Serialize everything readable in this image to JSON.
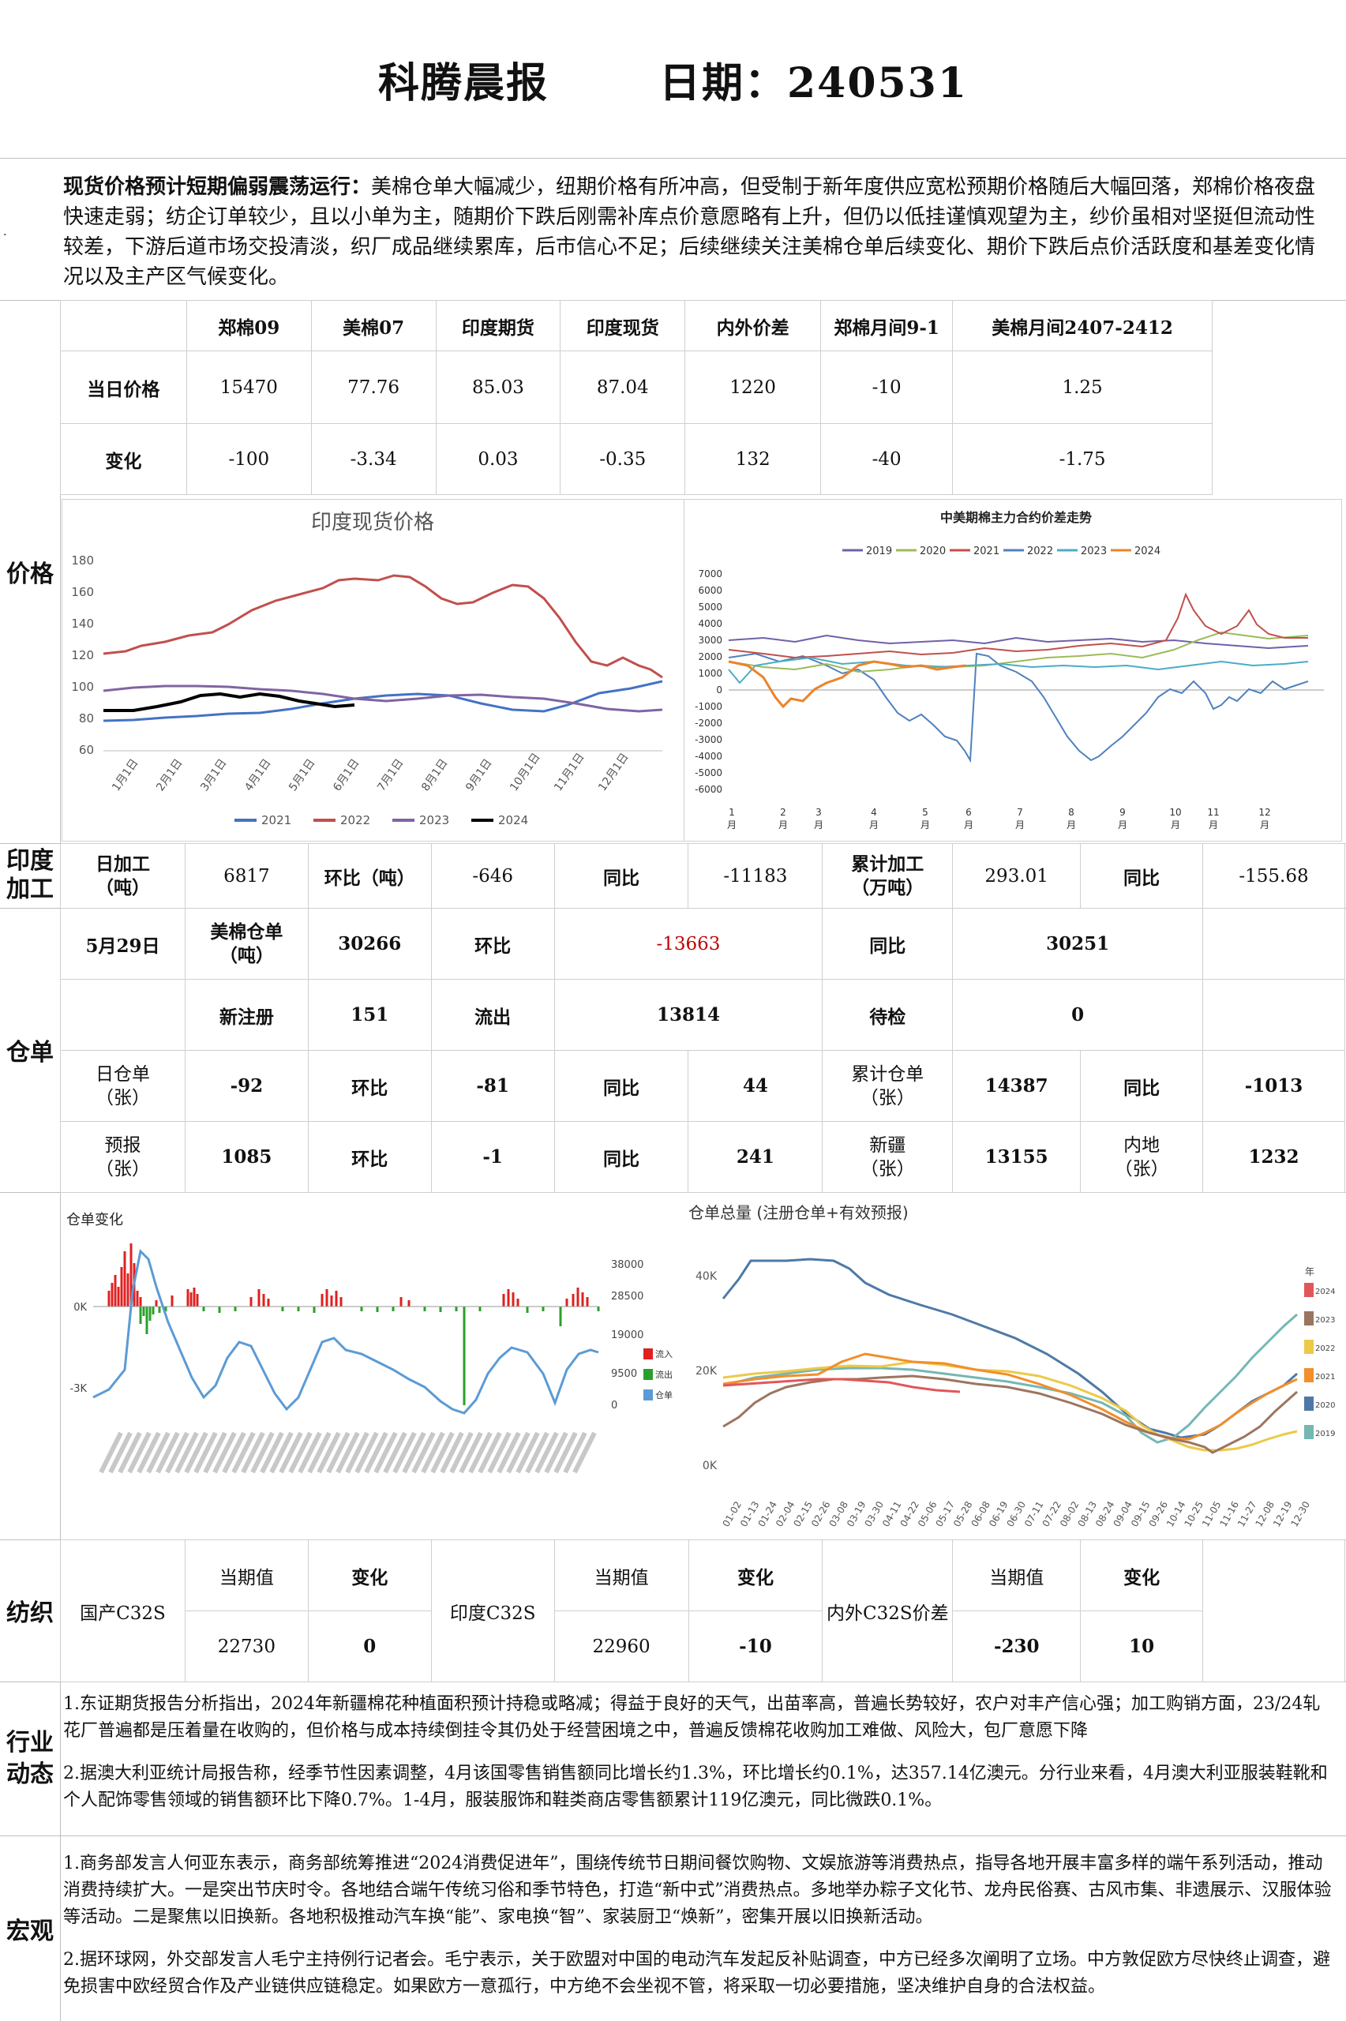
{
  "header": {
    "title": "科腾晨报",
    "date_label": "日期：240531"
  },
  "summary": {
    "lead": "现货价格预计短期偏弱震荡运行：",
    "body": "美棉仓单大幅减少，纽期价格有所冲高，但受制于新年度供应宽松预期价格随后大幅回落，郑棉价格夜盘快速走弱；纺企订单较少，且以小单为主，随期价下跌后刚需补库点价意愿略有上升，但仍以低挂谨慎观望为主，纱价虽相对坚挺但流动性较差，下游后道市场交投清淡，织厂成品继续累库，后市信心不足；后续继续关注美棉仓单后续变化、期价下跌后点价活跃度和基差变化情况以及主产区气候变化。",
    "dot": "."
  },
  "sections": {
    "price": "价格",
    "india_proc": "印度\n加工",
    "warrant": "仓单",
    "textile": "纺织",
    "industry": "行业\n动态",
    "macro": "宏观"
  },
  "price_table": {
    "headers": [
      "郑棉09",
      "美棉07",
      "印度期货",
      "印度现货",
      "内外价差",
      "郑棉月间9-1",
      "美棉月间2407-2412"
    ],
    "row1_label": "当日价格",
    "row1": [
      "15470",
      "77.76",
      "85.03",
      "87.04",
      "1220",
      "-10",
      "1.25"
    ],
    "row2_label": "变化",
    "row2": [
      "-100",
      "-3.34",
      "0.03",
      "-0.35",
      "132",
      "-40",
      "-1.75"
    ]
  },
  "india_chart": {
    "title": "印度现货价格",
    "yticks": [
      "180",
      "160",
      "140",
      "120",
      "100",
      "80",
      "60"
    ],
    "months": [
      "1月1日",
      "2月1日",
      "3月1日",
      "4月1日",
      "5月1日",
      "6月1日",
      "7月1日",
      "8月1日",
      "9月1日",
      "10月1日",
      "11月1日",
      "12月1日"
    ],
    "legend": [
      "2021",
      "2022",
      "2023",
      "2024"
    ],
    "colors": [
      "#4472c4",
      "#c0504d",
      "#8064a2",
      "#000000"
    ]
  },
  "spread_chart": {
    "title": "中美期棉主力合约价差走势",
    "legend": [
      "2019",
      "2020",
      "2021",
      "2022",
      "2023",
      "2024"
    ],
    "colors": [
      "#7060a8",
      "#9bbb59",
      "#c0504d",
      "#4f81bd",
      "#4bacc6",
      "#e9842b"
    ],
    "yticks": [
      "7000",
      "6000",
      "5000",
      "4000",
      "3000",
      "2000",
      "1000",
      "0",
      "-1000",
      "-2000",
      "-3000",
      "-4000",
      "-5000",
      "-6000"
    ],
    "months": [
      "1\n月",
      "2\n月",
      "3\n月",
      "4\n月",
      "5\n月",
      "6\n月",
      "7\n月",
      "8\n月",
      "9\n月",
      "10\n月",
      "11\n月",
      "12\n月"
    ]
  },
  "india_processing": {
    "label1": "日加工\n（吨）",
    "v1": "6817",
    "label2": "环比（吨）",
    "v2": "-646",
    "label3": "同比",
    "v3": "-11183",
    "label4": "累计加工\n（万吨）",
    "v4": "293.01",
    "label5": "同比",
    "v5": "-155.68"
  },
  "warrant_table": {
    "date": "5月29日",
    "us_label": "美棉仓单\n（吨）",
    "us_val": "30266",
    "hb": "环比",
    "hb_val": "-13663",
    "tb": "同比",
    "tb_val": "30251",
    "new_reg": "新注册",
    "new_reg_val": "151",
    "out": "流出",
    "out_val": "13814",
    "pending": "待检",
    "pending_val": "0",
    "daily_label": "日仓单\n（张）",
    "daily_val": "-92",
    "d_hb": "环比",
    "d_hb_val": "-81",
    "d_tb": "同比",
    "d_tb_val": "44",
    "cum_label": "累计仓单\n（张）",
    "cum_val": "14387",
    "cum_tb": "同比",
    "cum_tb_val": "-1013",
    "fc_label": "预报\n（张）",
    "fc_val": "1085",
    "fc_hb": "环比",
    "fc_hb_val": "-1",
    "fc_tb": "同比",
    "fc_tb_val": "241",
    "xj_label": "新疆\n（张）",
    "xj_val": "13155",
    "nd_label": "内地\n（张）",
    "nd_val": "1232"
  },
  "warrant_change_chart": {
    "title": "仓单变化",
    "left_ticks": [
      "0K",
      "-3K"
    ],
    "right_ticks": [
      "38000",
      "28500",
      "19000",
      "9500",
      "0"
    ],
    "legend": [
      "流入",
      "流出",
      "仓单"
    ],
    "colors": [
      "#e02020",
      "#2aa02a",
      "#5b9bd5"
    ]
  },
  "warrant_total_chart": {
    "title": "仓单总量 (注册仓单+有效预报)",
    "yticks": [
      "40K",
      "20K",
      "0K"
    ],
    "xticks": [
      "01-02",
      "01-13",
      "01-24",
      "02-04",
      "02-15",
      "02-26",
      "03-08",
      "03-19",
      "03-30",
      "04-11",
      "04-22",
      "05-06",
      "05-17",
      "05-28",
      "06-08",
      "06-19",
      "06-30",
      "07-11",
      "07-22",
      "08-02",
      "08-13",
      "08-24",
      "09-04",
      "09-15",
      "09-26",
      "10-14",
      "10-25",
      "11-05",
      "11-16",
      "11-27",
      "12-08",
      "12-19",
      "12-30"
    ],
    "legend_title": "年",
    "legend": [
      "2024",
      "2023",
      "2022",
      "2021",
      "2020",
      "2019"
    ],
    "colors": [
      "#e15759",
      "#9c755f",
      "#edc948",
      "#f28e2b",
      "#4e79a7",
      "#76b7b2"
    ]
  },
  "textile_table": {
    "domestic": "国产C32S",
    "india": "印度C32S",
    "spread": "内外C32S价差",
    "cur": "当期值",
    "chg": "变化",
    "domestic_val": "22730",
    "domestic_chg": "0",
    "india_val": "22960",
    "india_chg": "-10",
    "spread_val": "-230",
    "spread_chg": "10"
  },
  "industry": {
    "p1": "1.东证期货报告分析指出，2024年新疆棉花种植面积预计持稳或略减；得益于良好的天气，出苗率高，普遍长势较好，农户对丰产信心强；加工购销方面，23/24轧花厂普遍都是压着量在收购的，但价格与成本持续倒挂令其仍处于经营困境之中，普遍反馈棉花收购加工难做、风险大，包厂意愿下降",
    "p2": "2.据澳大利亚统计局报告称，经季节性因素调整，4月该国零售销售额同比增长约1.3%，环比增长约0.1%，达357.14亿澳元。分行业来看，4月澳大利亚服装鞋靴和个人配饰零售领域的销售额环比下降0.7%。1-4月，服装服饰和鞋类商店零售额累计119亿澳元，同比微跌0.1%。"
  },
  "macro": {
    "p1": "1.商务部发言人何亚东表示，商务部统筹推进“2024消费促进年”，围绕传统节日期间餐饮购物、文娱旅游等消费热点，指导各地开展丰富多样的端午系列活动，推动消费持续扩大。一是突出节庆时令。各地结合端午传统习俗和季节特色，打造“新中式”消费热点。多地举办粽子文化节、龙舟民俗赛、古风市集、非遗展示、汉服体验等活动。二是聚焦以旧换新。各地积极推动汽车换“能”、家电换“智”、家装厨卫“焕新”，密集开展以旧换新活动。",
    "p2": "2.据环球网，外交部发言人毛宁主持例行记者会。毛宁表示，关于欧盟对中国的电动汽车发起反补贴调查，中方已经多次阐明了立场。中方敦促欧方尽快终止调查，避免损害中欧经贸合作及产业链供应链稳定。如果欧方一意孤行，中方绝不会坐视不管，将采取一切必要措施，坚决维护自身的合法权益。"
  }
}
